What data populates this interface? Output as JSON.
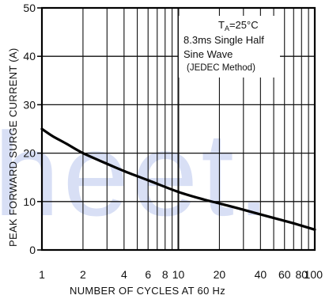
{
  "chart_data": {
    "type": "line",
    "title": "",
    "xlabel": "NUMBER OF CYCLES AT 60 Hz",
    "ylabel": "PEAK FORWARD SURGE CURRENT (A)",
    "x_scale": "log",
    "xlim": [
      1,
      100
    ],
    "ylim": [
      0,
      50
    ],
    "x_ticks": [
      1,
      2,
      4,
      6,
      8,
      10,
      20,
      40,
      60,
      80,
      100
    ],
    "x_tick_labels": [
      "1",
      "2",
      "4",
      "6",
      "8",
      "10",
      "20",
      "40",
      "60",
      "80",
      "100"
    ],
    "y_ticks": [
      0,
      10,
      20,
      30,
      40,
      50
    ],
    "y_tick_labels": [
      "0",
      "10",
      "20",
      "30",
      "40",
      "50"
    ],
    "grid": true,
    "series": [
      {
        "x": [
          1,
          1.2,
          1.5,
          2,
          3,
          4,
          6,
          10,
          15,
          20,
          30,
          50,
          70,
          100
        ],
        "y": [
          25,
          23.5,
          22,
          20,
          17.8,
          16.3,
          14.4,
          12,
          10.5,
          9.6,
          8.3,
          6.6,
          5.5,
          4.2
        ],
        "color": "#000000"
      }
    ],
    "annotations": {
      "line1": "TA=25°C",
      "line1_main": "T",
      "line1_sub": "A",
      "line1_rest": "=25°C",
      "line2": "8.3ms Single Half",
      "line3": "Sine Wave",
      "line4": "(JEDEC Method)"
    }
  },
  "watermark": "heet.",
  "colors": {
    "curve": "#000000",
    "grid": "#111111",
    "watermark": "#b9c5ee"
  }
}
